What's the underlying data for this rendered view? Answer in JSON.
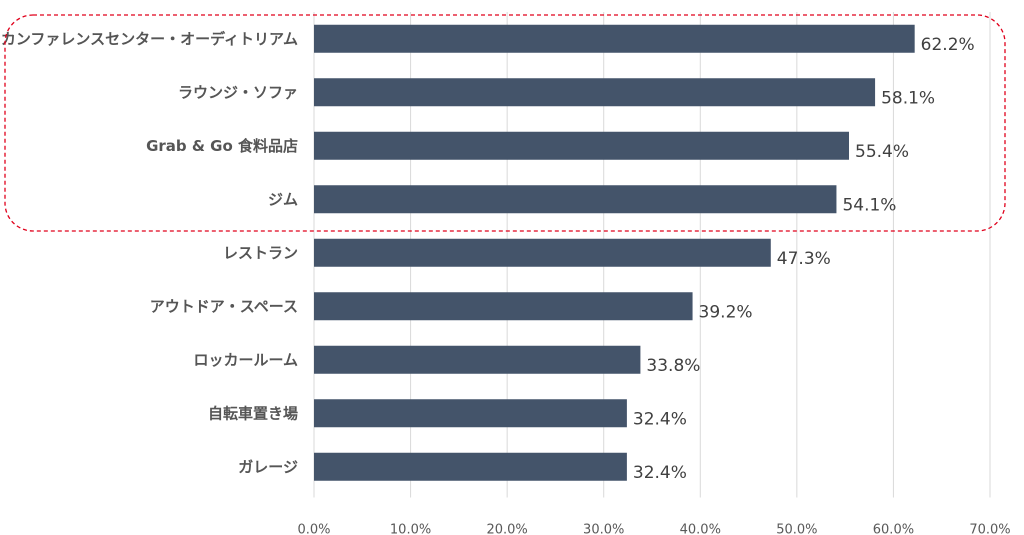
{
  "chart_data": {
    "type": "bar",
    "orientation": "horizontal",
    "categories": [
      "カンファレンスセンター・オーディトリアム",
      "ラウンジ・ソファ",
      "Grab & Go 食料品店",
      "ジム",
      "レストラン",
      "アウトドア・スペース",
      "ロッカールーム",
      "自転車置き場",
      "ガレージ"
    ],
    "values": [
      62.2,
      58.1,
      55.4,
      54.1,
      47.3,
      39.2,
      33.8,
      32.4,
      32.4
    ],
    "value_labels": [
      "62.2%",
      "58.1%",
      "55.4%",
      "54.1%",
      "47.3%",
      "39.2%",
      "33.8%",
      "32.4%",
      "32.4%"
    ],
    "xlim": [
      0,
      70
    ],
    "x_ticks": [
      0,
      10,
      20,
      30,
      40,
      50,
      60,
      70
    ],
    "x_tick_labels": [
      "0.0%",
      "10.0%",
      "20.0%",
      "30.0%",
      "40.0%",
      "50.0%",
      "60.0%",
      "70.0%"
    ],
    "grid": "vertical",
    "bar_color": "#44546a",
    "grid_color": "#d9d9d9",
    "highlight": {
      "categories": [
        "カンファレンスセンター・オーディトリアム",
        "ラウンジ・ソファ",
        "Grab & Go 食料品店",
        "ジム"
      ],
      "style": "dashed",
      "color": "#e0001b"
    }
  }
}
